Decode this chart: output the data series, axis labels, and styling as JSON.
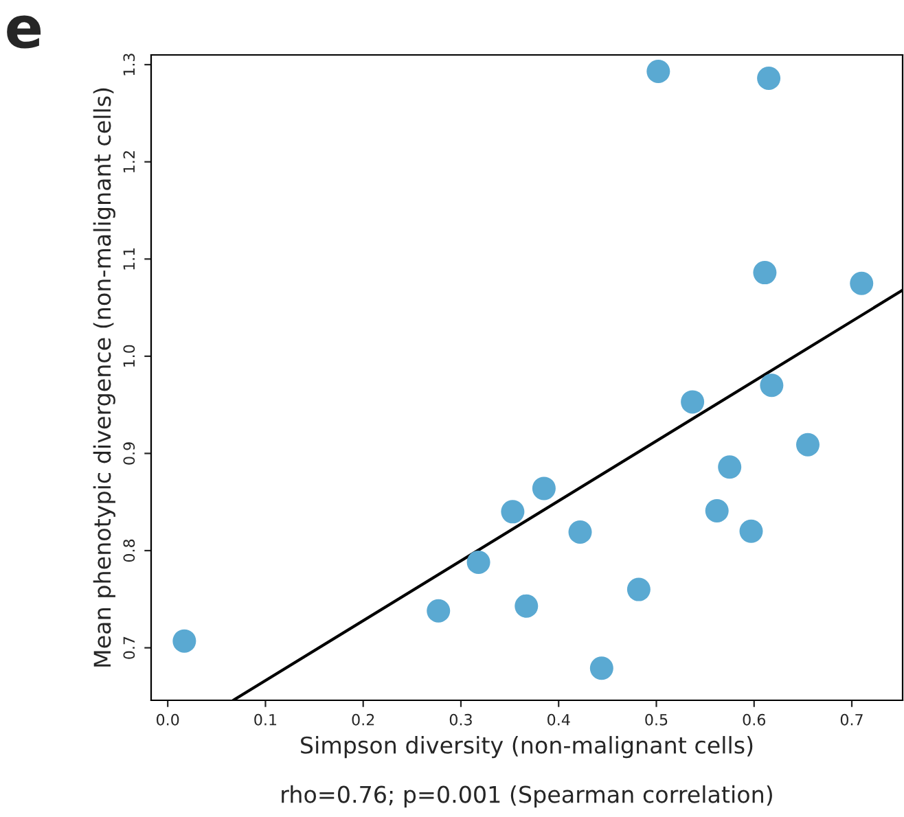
{
  "chart_data": {
    "type": "scatter",
    "xlabel": "Simpson diversity (non-malignant cells)",
    "ylabel": "Mean phenotypic divergence (non-malignant cells)",
    "annotations": [
      "e",
      "rho=0.76; p=0.001 (Spearman correlation)"
    ],
    "series": [
      {
        "color": "#5aa9d2",
        "marker": "circle",
        "x": [
          0.017,
          0.277,
          0.318,
          0.353,
          0.385,
          0.367,
          0.422,
          0.444,
          0.482,
          0.502,
          0.537,
          0.575,
          0.562,
          0.597,
          0.615,
          0.611,
          0.618,
          0.655,
          0.71
        ],
        "values": [
          0.707,
          0.738,
          0.788,
          0.84,
          0.864,
          0.743,
          0.819,
          0.679,
          0.76,
          1.293,
          0.953,
          0.886,
          0.841,
          0.82,
          1.286,
          1.086,
          0.97,
          0.909,
          1.075
        ]
      },
      {
        "type": "line",
        "color": "#000000",
        "line_style": "solid",
        "x": [
          0.067,
          0.752
        ],
        "values": [
          0.646,
          1.068
        ]
      }
    ],
    "xlim": [
      -0.017,
      0.752
    ],
    "ylim": [
      0.646,
      1.31
    ],
    "xticks": [
      {
        "value": 0,
        "label": "0.0"
      },
      0.1,
      0.2,
      0.3,
      0.4,
      0.5,
      0.6,
      0.7
    ],
    "yticks": [
      0.7,
      0.8,
      0.9,
      {
        "value": 1,
        "label": "1.0"
      },
      1.1,
      1.2,
      1.3
    ],
    "grid": false
  }
}
